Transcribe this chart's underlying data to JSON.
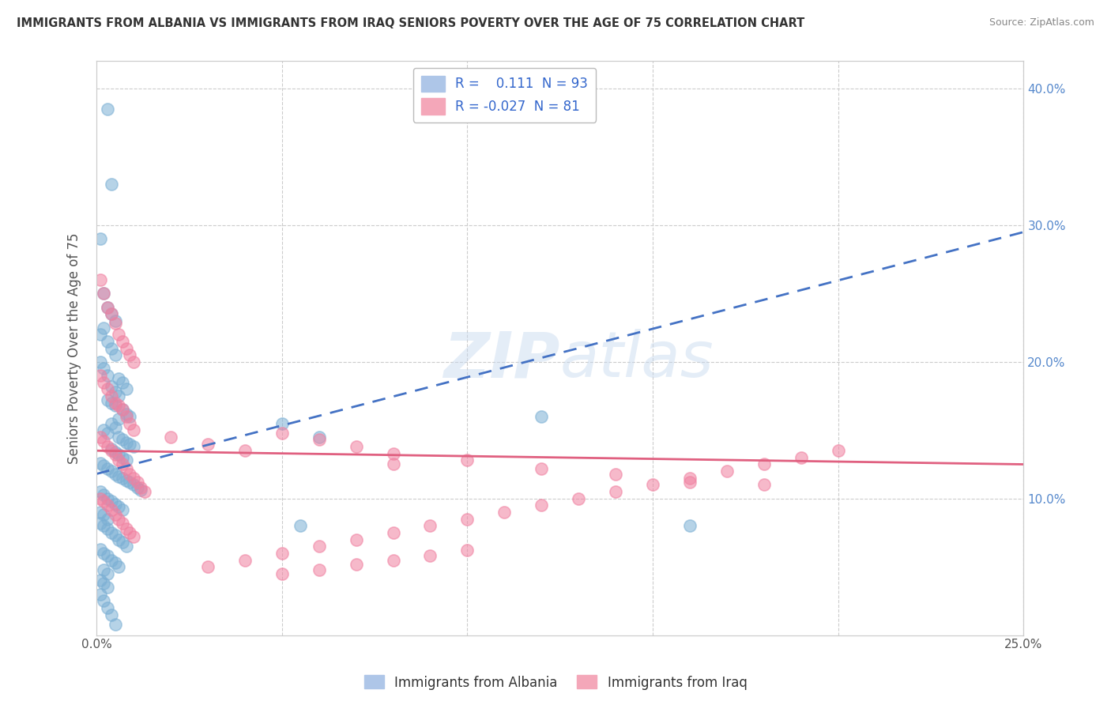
{
  "title": "IMMIGRANTS FROM ALBANIA VS IMMIGRANTS FROM IRAQ SENIORS POVERTY OVER THE AGE OF 75 CORRELATION CHART",
  "source": "Source: ZipAtlas.com",
  "ylabel": "Seniors Poverty Over the Age of 75",
  "xlim": [
    0.0,
    0.25
  ],
  "ylim": [
    0.0,
    0.42
  ],
  "albania_color": "#7bafd4",
  "iraq_color": "#f080a0",
  "albania_line_color": "#4472c4",
  "iraq_line_color": "#e06080",
  "watermark": "ZIPAtlas",
  "background_color": "#ffffff",
  "grid_color": "#cccccc",
  "right_axis_color": "#5588cc",
  "albania_scatter_x": [
    0.003,
    0.004,
    0.001,
    0.002,
    0.003,
    0.004,
    0.005,
    0.002,
    0.001,
    0.003,
    0.004,
    0.005,
    0.001,
    0.002,
    0.003,
    0.006,
    0.007,
    0.004,
    0.008,
    0.005,
    0.006,
    0.003,
    0.004,
    0.005,
    0.007,
    0.008,
    0.009,
    0.006,
    0.004,
    0.005,
    0.002,
    0.003,
    0.006,
    0.007,
    0.008,
    0.009,
    0.01,
    0.004,
    0.005,
    0.006,
    0.007,
    0.008,
    0.001,
    0.002,
    0.003,
    0.004,
    0.005,
    0.006,
    0.007,
    0.008,
    0.009,
    0.01,
    0.011,
    0.012,
    0.001,
    0.002,
    0.003,
    0.004,
    0.005,
    0.006,
    0.007,
    0.001,
    0.002,
    0.003,
    0.001,
    0.002,
    0.003,
    0.004,
    0.005,
    0.006,
    0.007,
    0.008,
    0.001,
    0.002,
    0.003,
    0.004,
    0.005,
    0.006,
    0.002,
    0.003,
    0.05,
    0.055,
    0.06,
    0.12,
    0.16,
    0.001,
    0.002,
    0.003,
    0.001,
    0.002,
    0.003,
    0.004,
    0.005
  ],
  "albania_scatter_y": [
    0.385,
    0.33,
    0.29,
    0.25,
    0.24,
    0.235,
    0.23,
    0.225,
    0.22,
    0.215,
    0.21,
    0.205,
    0.2,
    0.195,
    0.19,
    0.188,
    0.185,
    0.182,
    0.18,
    0.178,
    0.175,
    0.172,
    0.17,
    0.168,
    0.165,
    0.162,
    0.16,
    0.158,
    0.155,
    0.152,
    0.15,
    0.148,
    0.145,
    0.143,
    0.141,
    0.14,
    0.138,
    0.136,
    0.134,
    0.132,
    0.13,
    0.128,
    0.126,
    0.124,
    0.122,
    0.12,
    0.118,
    0.116,
    0.115,
    0.113,
    0.112,
    0.11,
    0.108,
    0.106,
    0.105,
    0.103,
    0.1,
    0.098,
    0.096,
    0.094,
    0.092,
    0.09,
    0.088,
    0.085,
    0.082,
    0.08,
    0.078,
    0.075,
    0.073,
    0.07,
    0.068,
    0.065,
    0.063,
    0.06,
    0.058,
    0.055,
    0.053,
    0.05,
    0.048,
    0.045,
    0.155,
    0.08,
    0.145,
    0.16,
    0.08,
    0.04,
    0.038,
    0.035,
    0.03,
    0.025,
    0.02,
    0.015,
    0.008
  ],
  "iraq_scatter_x": [
    0.001,
    0.002,
    0.003,
    0.004,
    0.005,
    0.006,
    0.007,
    0.008,
    0.009,
    0.01,
    0.001,
    0.002,
    0.003,
    0.004,
    0.005,
    0.006,
    0.007,
    0.008,
    0.009,
    0.01,
    0.001,
    0.002,
    0.003,
    0.004,
    0.005,
    0.006,
    0.007,
    0.008,
    0.009,
    0.01,
    0.011,
    0.012,
    0.013,
    0.001,
    0.002,
    0.003,
    0.004,
    0.005,
    0.006,
    0.007,
    0.008,
    0.009,
    0.01,
    0.02,
    0.03,
    0.04,
    0.05,
    0.06,
    0.07,
    0.08,
    0.03,
    0.04,
    0.05,
    0.06,
    0.07,
    0.08,
    0.09,
    0.1,
    0.11,
    0.12,
    0.13,
    0.14,
    0.15,
    0.16,
    0.17,
    0.18,
    0.19,
    0.2,
    0.08,
    0.1,
    0.12,
    0.14,
    0.16,
    0.18,
    0.05,
    0.06,
    0.07,
    0.08,
    0.09,
    0.1
  ],
  "iraq_scatter_y": [
    0.26,
    0.25,
    0.24,
    0.235,
    0.228,
    0.22,
    0.215,
    0.21,
    0.205,
    0.2,
    0.19,
    0.185,
    0.18,
    0.175,
    0.17,
    0.168,
    0.165,
    0.16,
    0.155,
    0.15,
    0.145,
    0.142,
    0.138,
    0.135,
    0.132,
    0.128,
    0.125,
    0.122,
    0.118,
    0.115,
    0.112,
    0.108,
    0.105,
    0.1,
    0.098,
    0.095,
    0.092,
    0.088,
    0.085,
    0.082,
    0.078,
    0.075,
    0.072,
    0.145,
    0.14,
    0.135,
    0.148,
    0.143,
    0.138,
    0.133,
    0.05,
    0.055,
    0.06,
    0.065,
    0.07,
    0.075,
    0.08,
    0.085,
    0.09,
    0.095,
    0.1,
    0.105,
    0.11,
    0.115,
    0.12,
    0.125,
    0.13,
    0.135,
    0.125,
    0.128,
    0.122,
    0.118,
    0.112,
    0.11,
    0.045,
    0.048,
    0.052,
    0.055,
    0.058,
    0.062
  ],
  "alb_line_x0": 0.0,
  "alb_line_y0": 0.118,
  "alb_line_x1": 0.25,
  "alb_line_y1": 0.295,
  "iraq_line_x0": 0.0,
  "iraq_line_y0": 0.135,
  "iraq_line_x1": 0.25,
  "iraq_line_y1": 0.125
}
